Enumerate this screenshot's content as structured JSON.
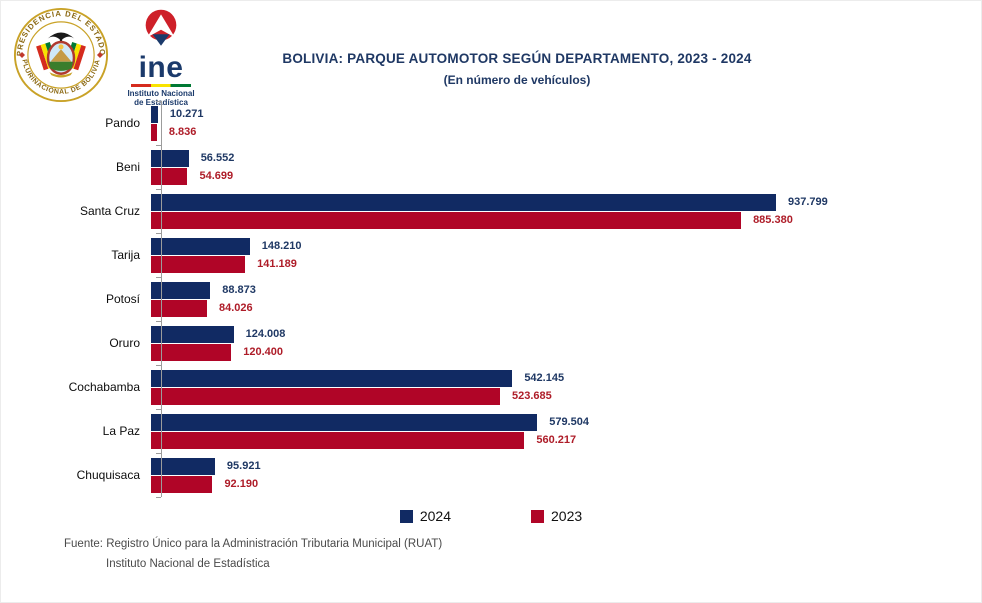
{
  "header": {
    "title": "BOLIVIA: PARQUE AUTOMOTOR SEGÚN DEPARTAMENTO, 2023 - 2024",
    "subtitle": "(En número de vehículos)"
  },
  "logos": {
    "seal_top_text": "PRESIDENCIA DEL ESTADO",
    "seal_bottom_text": "PLURINACIONAL DE BOLIVIA",
    "ine_word": "ine",
    "ine_sub_line1": "Instituto Nacional",
    "ine_sub_line2": "de Estadística"
  },
  "chart_data": {
    "type": "bar",
    "orientation": "horizontal",
    "title": "BOLIVIA: PARQUE AUTOMOTOR SEGÚN DEPARTAMENTO, 2023 - 2024",
    "subtitle": "(En número de vehículos)",
    "categories": [
      "Pando",
      "Beni",
      "Santa Cruz",
      "Tarija",
      "Potosí",
      "Oruro",
      "Cochabamba",
      "La Paz",
      "Chuquisaca"
    ],
    "series": [
      {
        "name": "2024",
        "color": "#112a63",
        "label_color": "#1f3864",
        "values": [
          10271,
          56552,
          937799,
          148210,
          88873,
          124008,
          542145,
          579504,
          95921
        ],
        "labels": [
          "10.271",
          "56.552",
          "937.799",
          "148.210",
          "88.873",
          "124.008",
          "542.145",
          "579.504",
          "95.921"
        ]
      },
      {
        "name": "2023",
        "color": "#b00527",
        "label_color": "#ae1c28",
        "values": [
          8836,
          54699,
          885380,
          141189,
          84026,
          120400,
          523685,
          560217,
          92190
        ],
        "labels": [
          "8.836",
          "54.699",
          "885.380",
          "141.189",
          "84.026",
          "120.400",
          "523.685",
          "560.217",
          "92.190"
        ]
      }
    ],
    "value_axis_visible": false,
    "value_range": [
      0,
      937799
    ],
    "grid": false,
    "legend_position": "bottom"
  },
  "legend": [
    {
      "label": "2024",
      "color": "#112a63"
    },
    {
      "label": "2023",
      "color": "#b00527"
    }
  ],
  "footer": {
    "line1": "Fuente: Registro Único para la Administración Tributaria Municipal (RUAT)",
    "line2": "Instituto Nacional de Estadística"
  },
  "colors": {
    "title_navy": "#1f3864",
    "bar_2024": "#112a63",
    "bar_2023": "#b00527",
    "axis_gray": "#9c9c9c",
    "ine_red": "#ce2029",
    "ine_blue": "#1b3a6b",
    "seal_gold": "#c9a227"
  }
}
